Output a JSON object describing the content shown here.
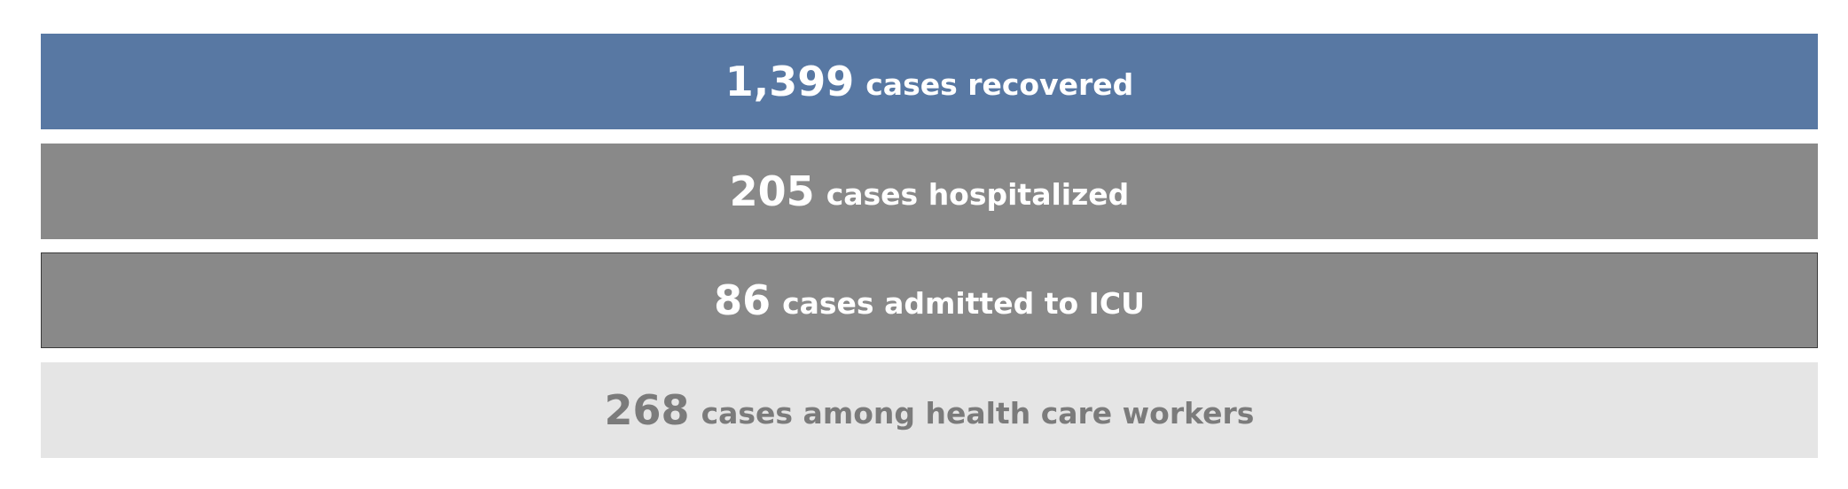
{
  "chart_data": {
    "type": "table",
    "rows": [
      {
        "value": "1,399",
        "label": "cases recovered",
        "background": "#5878a3",
        "text_color": "#ffffff"
      },
      {
        "value": "205",
        "label": "cases hospitalized",
        "background": "#898989",
        "text_color": "#ffffff"
      },
      {
        "value": "86",
        "label": "cases admitted to ICU",
        "background": "#898989",
        "text_color": "#ffffff"
      },
      {
        "value": "268",
        "label": "cases among health care workers",
        "background": "#e5e5e5",
        "text_color": "#7b7b7b"
      }
    ]
  }
}
